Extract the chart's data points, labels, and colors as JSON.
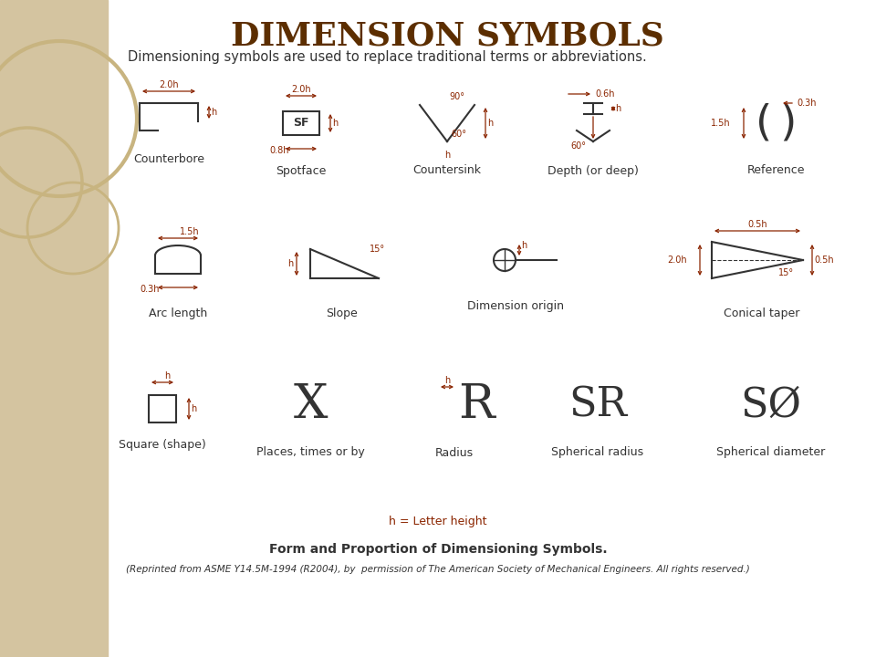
{
  "title": "DIMENSION SYMBOLS",
  "subtitle": "Dimensioning symbols are used to replace traditional terms or abbreviations.",
  "sidebar_color": "#d4c4a0",
  "dark_color": "#5c2e00",
  "line_color": "#8b2500",
  "text_color": "#333333",
  "white_color": "#ffffff",
  "symbol_color": "#333333",
  "footer_bold": "Form and Proportion of Dimensioning Symbols.",
  "footer_italic": "(Reprinted from ASME Y14.5M-1994 (R2004), by  permission of The American Society of Mechanical Engineers. All rights reserved.)",
  "h_label": "h = Letter height",
  "row1_labels": [
    "Counterbore",
    "Spotface",
    "Countersink",
    "Depth (or deep)",
    "Reference"
  ],
  "row2_labels": [
    "Arc length",
    "Slope",
    "Dimension origin",
    "Conical taper"
  ],
  "row3_labels": [
    "Square (shape)",
    "Places, times or by",
    "Radius",
    "Spherical radius",
    "Spherical diameter"
  ]
}
